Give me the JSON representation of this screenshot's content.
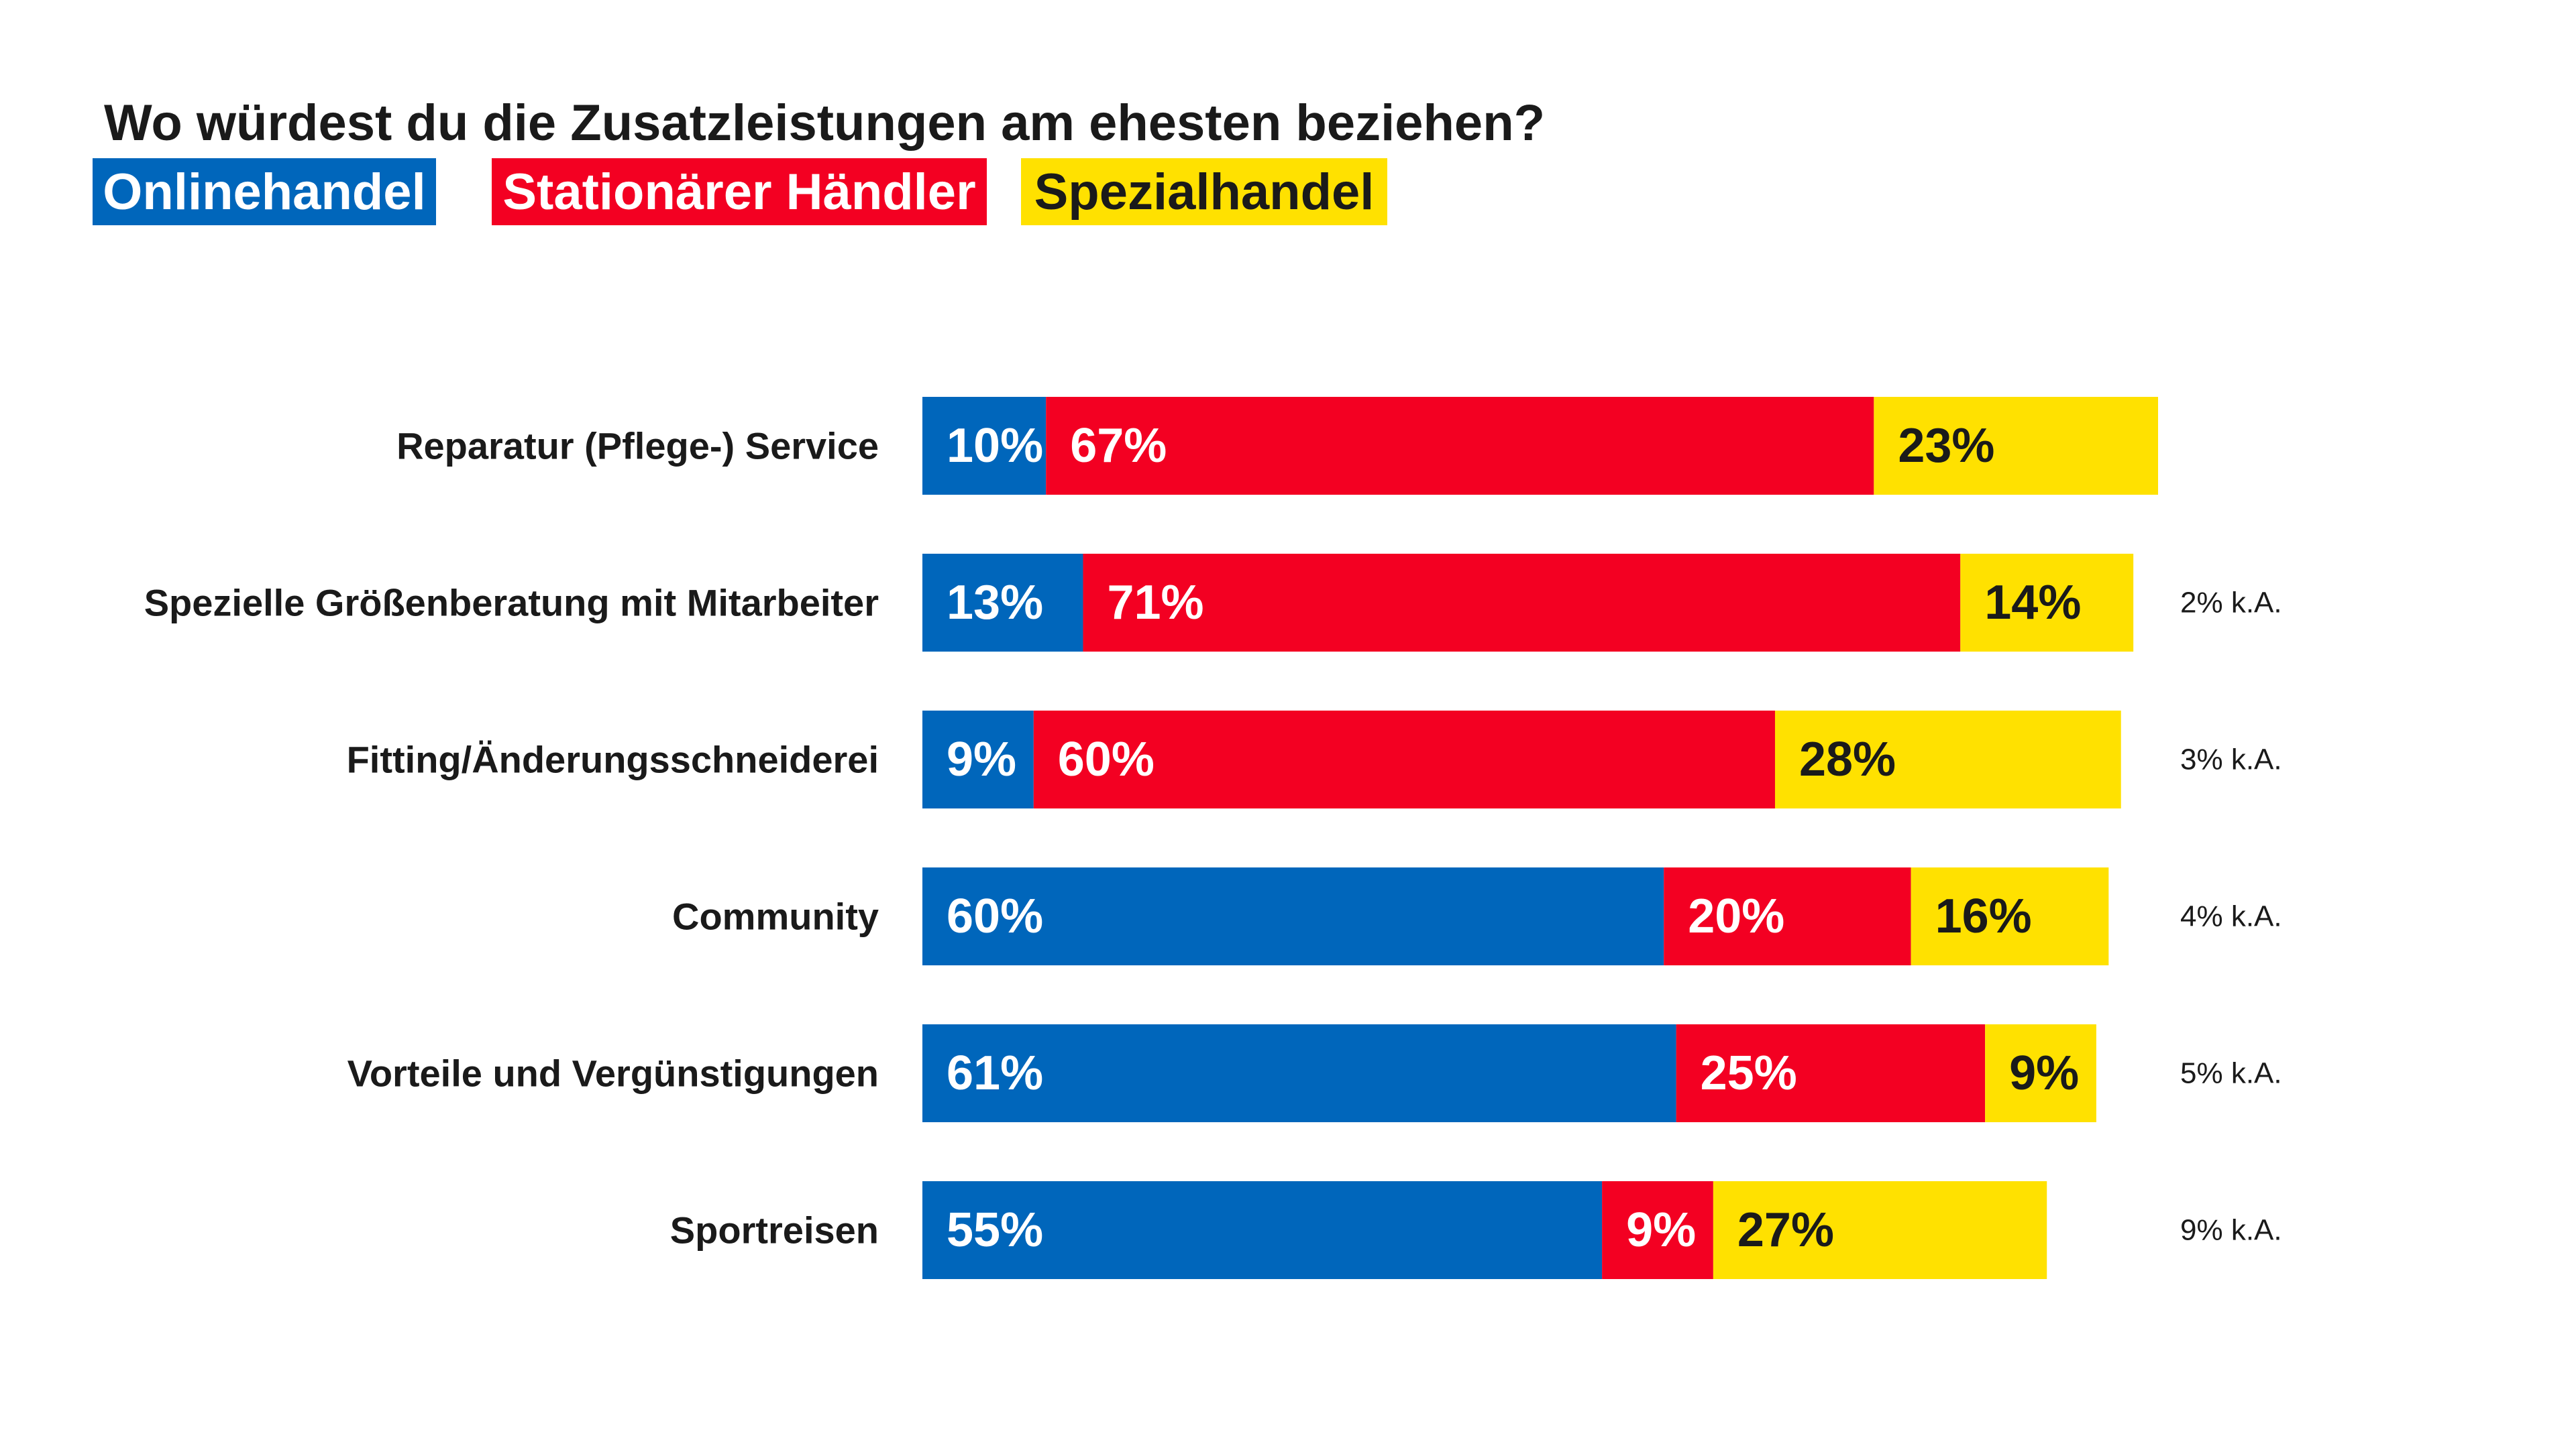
{
  "chart_data": {
    "type": "bar",
    "orientation": "horizontal",
    "stacked": true,
    "title": "Wo würdest du die Zusatzleistungen am ehesten beziehen?",
    "categories": [
      "Reparatur (Pflege-) Service",
      "Spezielle Größenberatung mit Mitarbeiter",
      "Fitting/Änderungsschneiderei",
      "Community",
      "Vorteile und Vergünstigungen",
      "Sportreisen"
    ],
    "series": [
      {
        "name": "Onlinehandel",
        "color": "#0066BB",
        "label_color": "#ffffff",
        "values": [
          10,
          13,
          9,
          60,
          61,
          55
        ]
      },
      {
        "name": "Stationärer Händler",
        "color": "#F30022",
        "label_color": "#ffffff",
        "values": [
          67,
          71,
          60,
          20,
          25,
          9
        ]
      },
      {
        "name": "Spezialhandel",
        "color": "#FFE100",
        "label_color": "#1a1a1a",
        "values": [
          23,
          14,
          28,
          16,
          9,
          27
        ]
      }
    ],
    "value_suffix": "%",
    "annotations": [
      "",
      "2% k.A.",
      "3% k.A.",
      "4% k.A.",
      "5% k.A.",
      "9% k.A."
    ],
    "xlim": [
      0,
      100
    ],
    "grid": false,
    "legend_position": "top-left"
  }
}
